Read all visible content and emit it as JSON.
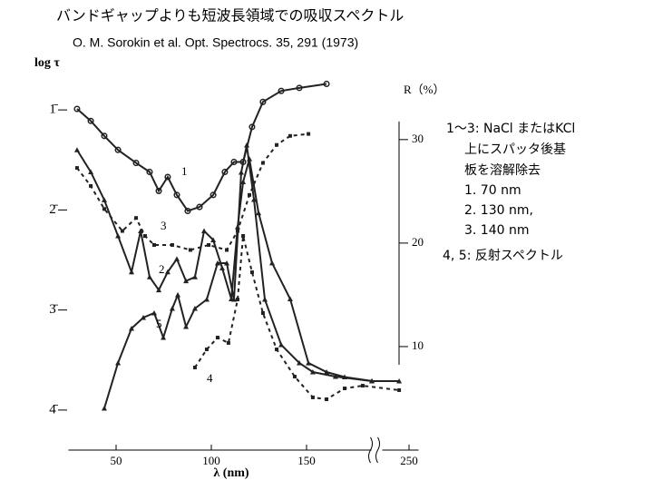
{
  "chart_data": {
    "type": "line",
    "title": "バンドギャップよりも短波長領域での吸収スペクトル",
    "subtitle": "O. M. Sorokin et al. Opt. Spectrocs. 35, 291 (1973)",
    "x_label": "λ (nm)",
    "y_label": "log τ",
    "y2_label": "R（%）",
    "notes": [
      "1〜3: NaCl またはKCl",
      "上にスパッタ後基",
      "板を溶解除去",
      "1.  70 nm",
      "2. 130 nm,",
      "3. 140 nm",
      "4, 5: 反射スペクトル"
    ],
    "xlim": [
      25,
      255
    ],
    "xbreak": [
      185,
      235
    ],
    "xticks": [
      50,
      100,
      150,
      250
    ],
    "ylim": [
      -4.4,
      -0.5
    ],
    "yticks": [
      {
        "value": -1,
        "label": "1̄"
      },
      {
        "value": -2,
        "label": "2̄"
      },
      {
        "value": -3,
        "label": "3̄"
      },
      {
        "value": -4,
        "label": "4̄"
      }
    ],
    "y2lim": [
      0,
      37.7
    ],
    "y2ticks": [
      10,
      20,
      30
    ],
    "series": [
      {
        "name": "1",
        "color": "#222",
        "dash": false,
        "marker": "circle",
        "x": [
          29.5,
          36.7,
          43.8,
          51,
          60.5,
          67.6,
          72.4,
          77.1,
          81.9,
          87.6,
          93.8,
          101,
          107.1,
          111.9,
          116.7,
          121.4,
          127.1,
          136.7,
          146.2,
          160.5
        ],
        "values": [
          -0.99,
          -1.11,
          -1.26,
          -1.4,
          -1.53,
          -1.62,
          -1.81,
          -1.67,
          -1.85,
          -2.01,
          -1.97,
          -1.85,
          -1.62,
          -1.52,
          -1.52,
          -1.17,
          -0.92,
          -0.81,
          -0.78,
          -0.74
        ]
      },
      {
        "name": "2",
        "color": "#222",
        "dash": false,
        "marker": "triangle",
        "x": [
          29.5,
          36.7,
          43.8,
          51,
          58.1,
          62.9,
          67.6,
          72.4,
          77.1,
          81.9,
          86.7,
          91.4,
          96.2,
          101,
          105.7,
          110.5,
          113.8,
          116.7,
          120,
          124.8,
          131.9,
          141.4,
          151,
          160.5,
          170,
          184.3
        ],
        "values": [
          -1.4,
          -1.62,
          -1.9,
          -2.26,
          -2.62,
          -2.21,
          -2.67,
          -2.8,
          -2.62,
          -2.49,
          -2.71,
          -2.67,
          -2.21,
          -2.3,
          -2.58,
          -2.89,
          -2.17,
          -1.72,
          -1.49,
          -2.03,
          -2.53,
          -2.89,
          -3.53,
          -3.62,
          -3.67,
          -3.71
        ]
      },
      {
        "name": "3",
        "color": "#222",
        "dash": true,
        "marker": "square",
        "x": [
          29.5,
          36.7,
          43.8,
          53.3,
          60.5,
          65.2,
          70,
          79.5,
          89,
          98.6,
          108.1,
          113.8,
          120,
          127.1,
          134.3,
          141.4,
          151
        ],
        "values": [
          -1.58,
          -1.76,
          -1.99,
          -2.21,
          -2.08,
          -2.26,
          -2.35,
          -2.35,
          -2.4,
          -2.35,
          -2.4,
          -2.21,
          -1.85,
          -1.53,
          -1.35,
          -1.26,
          -1.24
        ]
      },
      {
        "name": "4",
        "color": "#222",
        "dash": true,
        "marker": "square",
        "axis": "y2",
        "x": [
          91.4,
          97.6,
          103.3,
          109,
          113.8,
          116.7,
          121.4,
          127.1,
          134.3,
          143.8,
          153.3,
          160.5,
          170,
          179.5,
          244.8
        ],
        "values": [
          7.98,
          9.73,
          10.87,
          10.35,
          14.55,
          20.69,
          17.18,
          13.24,
          9.73,
          7.1,
          5.09,
          4.91,
          5.96,
          6.22,
          5.79
        ]
      },
      {
        "name": "5",
        "color": "#222",
        "dash": false,
        "marker": "triangle",
        "axis": "y2",
        "x": [
          43.8,
          51,
          58.1,
          64.3,
          70,
          74.8,
          79.5,
          82.4,
          86.7,
          91.4,
          97.6,
          103.3,
          108.1,
          111.9,
          115.7,
          118.6,
          122.4,
          128.1,
          136.7,
          146.2,
          153.3,
          165.2,
          184.3,
          244.8
        ],
        "values": [
          4.03,
          8.42,
          11.75,
          12.8,
          13.24,
          10.87,
          13.68,
          14.99,
          11.92,
          13.68,
          14.55,
          18.06,
          18.06,
          14.55,
          26.83,
          29.46,
          24.2,
          14.55,
          10.17,
          8.42,
          7.54,
          7.1,
          6.66,
          6.66
        ]
      }
    ]
  }
}
